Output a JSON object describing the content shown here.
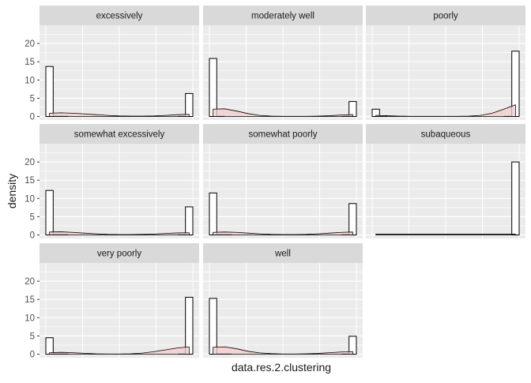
{
  "chart_data": {
    "type": "bar",
    "subtype": "faceted histogram with density overlay",
    "xlabel": "data.res.2.clustering",
    "ylabel": "density",
    "ylim": [
      0,
      25
    ],
    "yticks": [
      0,
      5,
      10,
      15,
      20
    ],
    "x_range": [
      0,
      1
    ],
    "bins": 20,
    "layout": "3x3 facet grid",
    "colors": {
      "panel_background": "#ebebeb",
      "grid": "#ffffff",
      "strip_background": "#d9d9d9",
      "bar_fill": "#ffffff",
      "bar_outline": "#000000",
      "density_fill": "#f4cccc",
      "density_line": "#000000"
    },
    "facets": [
      {
        "label": "excessively",
        "histogram": [
          13.7,
          0.1,
          0.1,
          0,
          0,
          0,
          0,
          0,
          0,
          0,
          0,
          0,
          0,
          0,
          0,
          0,
          0,
          0,
          0.1,
          6.3
        ],
        "density": [
          0.9,
          1.0,
          0.9,
          0.7,
          0.5,
          0.3,
          0.15,
          0.1,
          0.1,
          0.15,
          0.3,
          0.5,
          0.6
        ]
      },
      {
        "label": "moderately well",
        "histogram": [
          15.9,
          0.1,
          0,
          0,
          0,
          0,
          0,
          0,
          0,
          0,
          0,
          0,
          0,
          0,
          0,
          0,
          0,
          0,
          0.1,
          4.1
        ],
        "density": [
          2.0,
          2.1,
          1.5,
          0.8,
          0.3,
          0.1,
          0.05,
          0.05,
          0.05,
          0.1,
          0.2,
          0.4,
          0.5
        ]
      },
      {
        "label": "poorly",
        "histogram": [
          2.0,
          0.2,
          0,
          0,
          0,
          0,
          0,
          0,
          0,
          0,
          0,
          0,
          0,
          0,
          0,
          0,
          0,
          0,
          0.1,
          17.9
        ],
        "density": [
          0.3,
          0.2,
          0.1,
          0.05,
          0.05,
          0.05,
          0.05,
          0.05,
          0.1,
          0.3,
          0.9,
          2.0,
          3.2
        ]
      },
      {
        "label": "somewhat excessively",
        "histogram": [
          12.2,
          0.1,
          0.1,
          0,
          0,
          0,
          0,
          0,
          0,
          0,
          0,
          0,
          0,
          0,
          0,
          0,
          0,
          0,
          0.1,
          7.7
        ],
        "density": [
          0.8,
          0.85,
          0.7,
          0.5,
          0.3,
          0.15,
          0.1,
          0.1,
          0.15,
          0.25,
          0.4,
          0.55,
          0.6
        ]
      },
      {
        "label": "somewhat poorly",
        "histogram": [
          11.5,
          0.1,
          0.1,
          0,
          0,
          0,
          0,
          0,
          0,
          0,
          0,
          0,
          0,
          0,
          0,
          0,
          0,
          0,
          0.1,
          8.6
        ],
        "density": [
          0.7,
          0.8,
          0.7,
          0.5,
          0.3,
          0.15,
          0.1,
          0.1,
          0.15,
          0.3,
          0.5,
          0.7,
          0.8
        ]
      },
      {
        "label": "subaqueous",
        "histogram": [
          0,
          0,
          0,
          0,
          0,
          0,
          0,
          0,
          0,
          0,
          0,
          0,
          0,
          0,
          0,
          0,
          0,
          0,
          0,
          20
        ],
        "density": [
          0.2,
          0.2,
          0.2,
          0.2,
          0.2,
          0.2,
          0.2,
          0.2,
          0.2,
          0.2,
          0.2,
          0.2,
          0.2
        ]
      },
      {
        "label": "very poorly",
        "histogram": [
          4.5,
          0.1,
          0.1,
          0,
          0,
          0,
          0,
          0,
          0,
          0,
          0,
          0,
          0,
          0,
          0,
          0,
          0,
          0,
          0.1,
          15.6
        ],
        "density": [
          0.4,
          0.5,
          0.4,
          0.25,
          0.1,
          0.05,
          0.05,
          0.1,
          0.3,
          0.7,
          1.2,
          1.7,
          2.0
        ]
      },
      {
        "label": "well",
        "histogram": [
          15.3,
          0.1,
          0.1,
          0,
          0,
          0,
          0,
          0,
          0,
          0,
          0,
          0,
          0,
          0,
          0,
          0,
          0,
          0,
          0.1,
          4.9
        ],
        "density": [
          1.9,
          2.0,
          1.5,
          0.8,
          0.35,
          0.15,
          0.05,
          0.05,
          0.1,
          0.2,
          0.4,
          0.6,
          0.7
        ]
      }
    ]
  }
}
